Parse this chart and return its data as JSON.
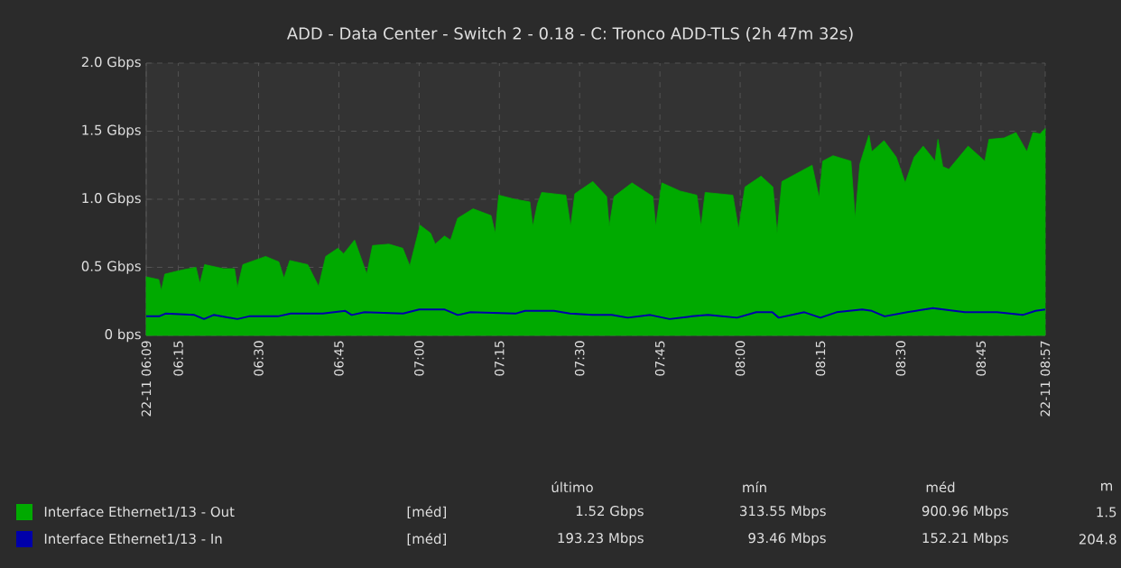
{
  "chart_data": {
    "type": "area",
    "title": "ADD - Data Center - Switch 2 - 0.18 - C: Tronco ADD-TLS (2h 47m 32s)",
    "xlim": [
      6.15,
      8.95
    ],
    "ylim": [
      0,
      2
    ],
    "xticks": [
      {
        "value": 6.15,
        "label": "22-11 06:09"
      },
      {
        "value": 6.25,
        "label": "06:15"
      },
      {
        "value": 6.5,
        "label": "06:30"
      },
      {
        "value": 6.75,
        "label": "06:45"
      },
      {
        "value": 7.0,
        "label": "07:00"
      },
      {
        "value": 7.25,
        "label": "07:15"
      },
      {
        "value": 7.5,
        "label": "07:30"
      },
      {
        "value": 7.75,
        "label": "07:45"
      },
      {
        "value": 8.0,
        "label": "08:00"
      },
      {
        "value": 8.25,
        "label": "08:15"
      },
      {
        "value": 8.5,
        "label": "08:30"
      },
      {
        "value": 8.75,
        "label": "08:45"
      },
      {
        "value": 8.95,
        "label": "22-11 08:57"
      }
    ],
    "yticks": [
      {
        "value": 0,
        "label": "0 bps"
      },
      {
        "value": 0.5,
        "label": "0.5 Gbps"
      },
      {
        "value": 1.0,
        "label": "1.0 Gbps"
      },
      {
        "value": 1.5,
        "label": "1.5 Gbps"
      },
      {
        "value": 2.0,
        "label": "2.0 Gbps"
      }
    ],
    "grid": true,
    "legend": "bottom",
    "series": [
      {
        "name": "Interface Ethernet1/13 - Out",
        "color": "#00aa00",
        "x": [
          6.15,
          6.189,
          6.197,
          6.208,
          6.261,
          6.305,
          6.317,
          6.332,
          6.391,
          6.425,
          6.434,
          6.451,
          6.522,
          6.563,
          6.579,
          6.597,
          6.653,
          6.687,
          6.709,
          6.747,
          6.765,
          6.799,
          6.837,
          6.855,
          6.906,
          6.949,
          6.971,
          7.003,
          7.036,
          7.05,
          7.079,
          7.098,
          7.12,
          7.168,
          7.224,
          7.237,
          7.248,
          7.298,
          7.345,
          7.354,
          7.369,
          7.382,
          7.457,
          7.472,
          7.485,
          7.541,
          7.584,
          7.592,
          7.607,
          7.663,
          7.728,
          7.737,
          7.756,
          7.813,
          7.865,
          7.878,
          7.891,
          7.977,
          7.995,
          8.015,
          8.065,
          8.102,
          8.115,
          8.13,
          8.224,
          8.246,
          8.257,
          8.289,
          8.345,
          8.358,
          8.373,
          8.401,
          8.41,
          8.448,
          8.486,
          8.514,
          8.542,
          8.57,
          8.607,
          8.616,
          8.631,
          8.65,
          8.71,
          8.762,
          8.775,
          8.822,
          8.859,
          8.893,
          8.912,
          8.934,
          8.95
        ],
        "values": [
          0.43,
          0.41,
          0.33,
          0.45,
          0.48,
          0.5,
          0.38,
          0.52,
          0.49,
          0.49,
          0.35,
          0.52,
          0.58,
          0.54,
          0.42,
          0.55,
          0.52,
          0.36,
          0.58,
          0.64,
          0.6,
          0.7,
          0.45,
          0.66,
          0.67,
          0.64,
          0.51,
          0.81,
          0.75,
          0.67,
          0.73,
          0.7,
          0.86,
          0.93,
          0.88,
          0.75,
          1.03,
          1.0,
          0.98,
          0.8,
          0.97,
          1.05,
          1.03,
          0.8,
          1.04,
          1.13,
          1.02,
          0.8,
          1.02,
          1.12,
          1.02,
          0.8,
          1.12,
          1.06,
          1.03,
          0.8,
          1.05,
          1.03,
          0.78,
          1.09,
          1.17,
          1.09,
          0.75,
          1.13,
          1.25,
          1.01,
          1.28,
          1.32,
          1.28,
          0.86,
          1.26,
          1.47,
          1.35,
          1.43,
          1.31,
          1.12,
          1.31,
          1.39,
          1.28,
          1.44,
          1.24,
          1.22,
          1.39,
          1.28,
          1.44,
          1.45,
          1.49,
          1.35,
          1.49,
          1.48,
          1.52
        ]
      },
      {
        "name": "Interface Ethernet1/13 - In",
        "type": "line",
        "color": "#0000aa",
        "x": [
          6.15,
          6.19,
          6.21,
          6.3,
          6.33,
          6.36,
          6.434,
          6.47,
          6.56,
          6.6,
          6.7,
          6.77,
          6.79,
          6.83,
          6.95,
          7.0,
          7.08,
          7.12,
          7.16,
          7.3,
          7.33,
          7.42,
          7.47,
          7.54,
          7.6,
          7.65,
          7.72,
          7.78,
          7.85,
          7.9,
          7.99,
          8.05,
          8.1,
          8.12,
          8.2,
          8.25,
          8.3,
          8.38,
          8.41,
          8.45,
          8.52,
          8.6,
          8.7,
          8.8,
          8.88,
          8.92,
          8.95
        ],
        "values": [
          0.14,
          0.14,
          0.16,
          0.15,
          0.12,
          0.15,
          0.12,
          0.14,
          0.14,
          0.16,
          0.16,
          0.18,
          0.15,
          0.17,
          0.16,
          0.19,
          0.19,
          0.15,
          0.17,
          0.16,
          0.18,
          0.18,
          0.16,
          0.15,
          0.15,
          0.13,
          0.15,
          0.12,
          0.14,
          0.15,
          0.13,
          0.17,
          0.17,
          0.13,
          0.17,
          0.13,
          0.17,
          0.19,
          0.18,
          0.14,
          0.17,
          0.2,
          0.17,
          0.17,
          0.15,
          0.18,
          0.19
        ]
      }
    ],
    "annotations": [
      "último",
      "mín",
      "méd",
      "m",
      "[méd]",
      "1.52 Gbps",
      "313.55 Mbps",
      "900.96 Mbps",
      "1.5",
      "[méd]",
      "193.23 Mbps",
      "93.46 Mbps",
      "152.21 Mbps",
      "204.8"
    ]
  }
}
